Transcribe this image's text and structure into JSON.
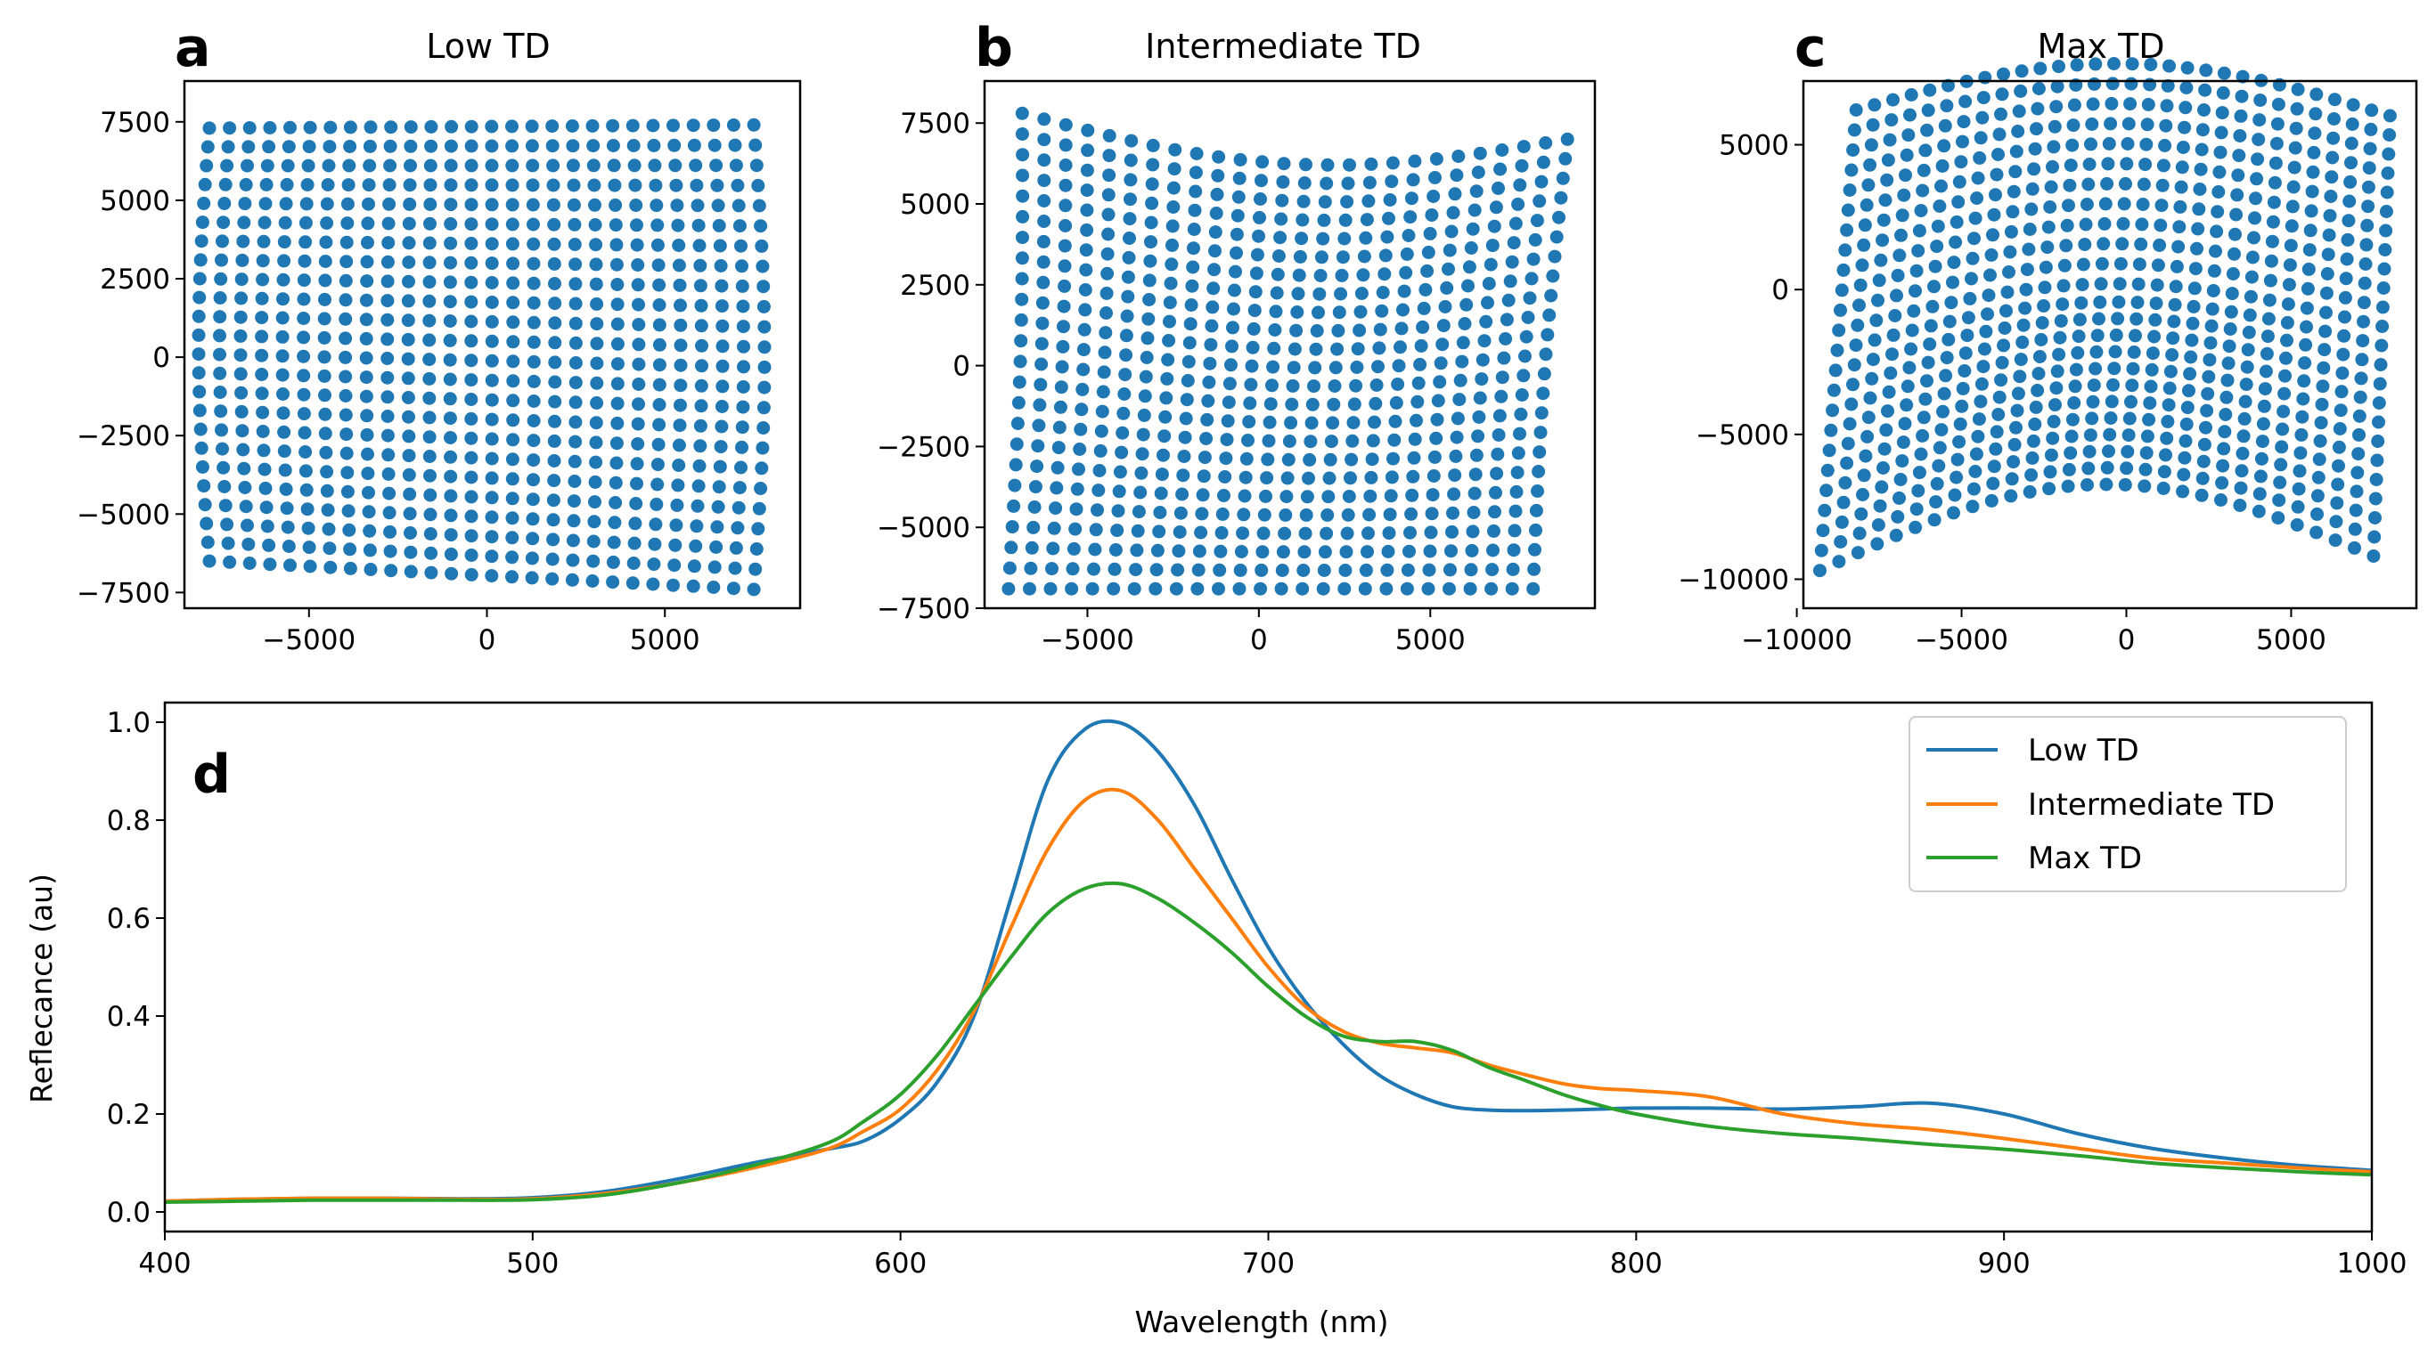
{
  "chart_data": [
    {
      "panel": "a",
      "type": "scatter",
      "title": "Low TD",
      "xlim": [
        -8500,
        8800
      ],
      "ylim": [
        -8000,
        8800
      ],
      "xticks": [
        -5000,
        0,
        5000
      ],
      "xtick_labels": [
        "−5000",
        "0",
        "5000"
      ],
      "yticks": [
        -7500,
        -5000,
        -2500,
        0,
        2500,
        5000,
        7500
      ],
      "ytick_labels": [
        "−7500",
        "−5000",
        "−2500",
        "0",
        "2500",
        "5000",
        "7500"
      ],
      "grid": {
        "cols": 28,
        "rows": 24
      },
      "corners": {
        "top_left": [
          -7800,
          7300
        ],
        "top_right": [
          7500,
          7400
        ],
        "bottom_left": [
          -7800,
          -6500
        ],
        "bottom_right": [
          7500,
          -7400
        ]
      },
      "distortion": {
        "kind": "bulge",
        "amount": 500
      },
      "color": "#1f77b4"
    },
    {
      "panel": "b",
      "type": "scatter",
      "title": "Intermediate TD",
      "xlim": [
        -8000,
        9800
      ],
      "ylim": [
        -7500,
        8800
      ],
      "xticks": [
        -5000,
        0,
        5000
      ],
      "xtick_labels": [
        "−5000",
        "0",
        "5000"
      ],
      "yticks": [
        -7500,
        -5000,
        -2500,
        0,
        2500,
        5000,
        7500
      ],
      "ytick_labels": [
        "−7500",
        "−5000",
        "−2500",
        "0",
        "2500",
        "5000",
        "7500"
      ],
      "grid": {
        "cols": 26,
        "rows": 24
      },
      "corners": {
        "top_left": [
          -6900,
          7800
        ],
        "top_right": [
          9000,
          7000
        ],
        "bottom_left": [
          -7300,
          -6900
        ],
        "bottom_right": [
          8000,
          -6900
        ]
      },
      "distortion": {
        "kind": "sag",
        "amount": 1300
      },
      "color": "#1f77b4"
    },
    {
      "panel": "c",
      "type": "scatter",
      "title": "Max TD",
      "xlim": [
        -9800,
        8800
      ],
      "ylim": [
        -11000,
        7200
      ],
      "xticks": [
        -10000,
        -5000,
        0,
        5000
      ],
      "xtick_labels": [
        "−10000",
        "−5000",
        "0",
        "5000"
      ],
      "yticks": [
        -10000,
        -5000,
        0,
        5000
      ],
      "ytick_labels": [
        "−10000",
        "−5000",
        "0",
        "5000"
      ],
      "grid": {
        "cols": 30,
        "rows": 24
      },
      "corners": {
        "top_left": [
          -8200,
          6200
        ],
        "top_right": [
          8000,
          6000
        ],
        "bottom_left": [
          -9300,
          -9700
        ],
        "bottom_right": [
          7500,
          -9200
        ]
      },
      "distortion": {
        "kind": "arch",
        "amount": 1700
      },
      "color": "#1f77b4"
    },
    {
      "panel": "d",
      "type": "line",
      "xlabel": "Wavelength (nm)",
      "ylabel": "Reflecance (au)",
      "xlim": [
        400,
        1000
      ],
      "ylim": [
        -0.04,
        1.04
      ],
      "xticks": [
        400,
        500,
        600,
        700,
        800,
        900,
        1000
      ],
      "xtick_labels": [
        "400",
        "500",
        "600",
        "700",
        "800",
        "900",
        "1000"
      ],
      "yticks": [
        0.0,
        0.2,
        0.4,
        0.6,
        0.8,
        1.0
      ],
      "ytick_labels": [
        "0.0",
        "0.2",
        "0.4",
        "0.6",
        "0.8",
        "1.0"
      ],
      "legend_position": "top-right",
      "x": [
        400,
        420,
        440,
        460,
        480,
        500,
        520,
        540,
        560,
        580,
        590,
        600,
        610,
        620,
        630,
        640,
        650,
        660,
        670,
        680,
        690,
        700,
        710,
        720,
        730,
        740,
        750,
        760,
        770,
        780,
        790,
        800,
        820,
        840,
        860,
        880,
        900,
        920,
        940,
        960,
        980,
        1000
      ],
      "series": [
        {
          "name": "Low TD",
          "color": "#1f77b4",
          "values": [
            0.022,
            0.026,
            0.028,
            0.028,
            0.027,
            0.029,
            0.042,
            0.068,
            0.1,
            0.128,
            0.145,
            0.19,
            0.265,
            0.4,
            0.64,
            0.88,
            0.985,
            0.998,
            0.94,
            0.83,
            0.68,
            0.54,
            0.43,
            0.345,
            0.28,
            0.24,
            0.215,
            0.208,
            0.207,
            0.208,
            0.21,
            0.212,
            0.212,
            0.21,
            0.215,
            0.222,
            0.2,
            0.16,
            0.13,
            0.11,
            0.095,
            0.085
          ]
        },
        {
          "name": "Intermediate TD",
          "color": "#ff7f0e",
          "values": [
            0.022,
            0.026,
            0.028,
            0.028,
            0.026,
            0.027,
            0.038,
            0.06,
            0.09,
            0.128,
            0.165,
            0.21,
            0.29,
            0.41,
            0.58,
            0.74,
            0.84,
            0.86,
            0.8,
            0.7,
            0.6,
            0.5,
            0.42,
            0.37,
            0.345,
            0.335,
            0.325,
            0.3,
            0.28,
            0.262,
            0.252,
            0.248,
            0.235,
            0.2,
            0.18,
            0.168,
            0.15,
            0.13,
            0.11,
            0.1,
            0.09,
            0.082
          ]
        },
        {
          "name": "Max TD",
          "color": "#2ca02c",
          "values": [
            0.02,
            0.022,
            0.024,
            0.024,
            0.024,
            0.025,
            0.035,
            0.06,
            0.095,
            0.14,
            0.185,
            0.24,
            0.32,
            0.42,
            0.52,
            0.61,
            0.66,
            0.67,
            0.64,
            0.59,
            0.53,
            0.46,
            0.4,
            0.36,
            0.348,
            0.348,
            0.33,
            0.295,
            0.268,
            0.24,
            0.218,
            0.2,
            0.175,
            0.16,
            0.15,
            0.138,
            0.128,
            0.115,
            0.1,
            0.09,
            0.082,
            0.076
          ]
        }
      ]
    }
  ]
}
